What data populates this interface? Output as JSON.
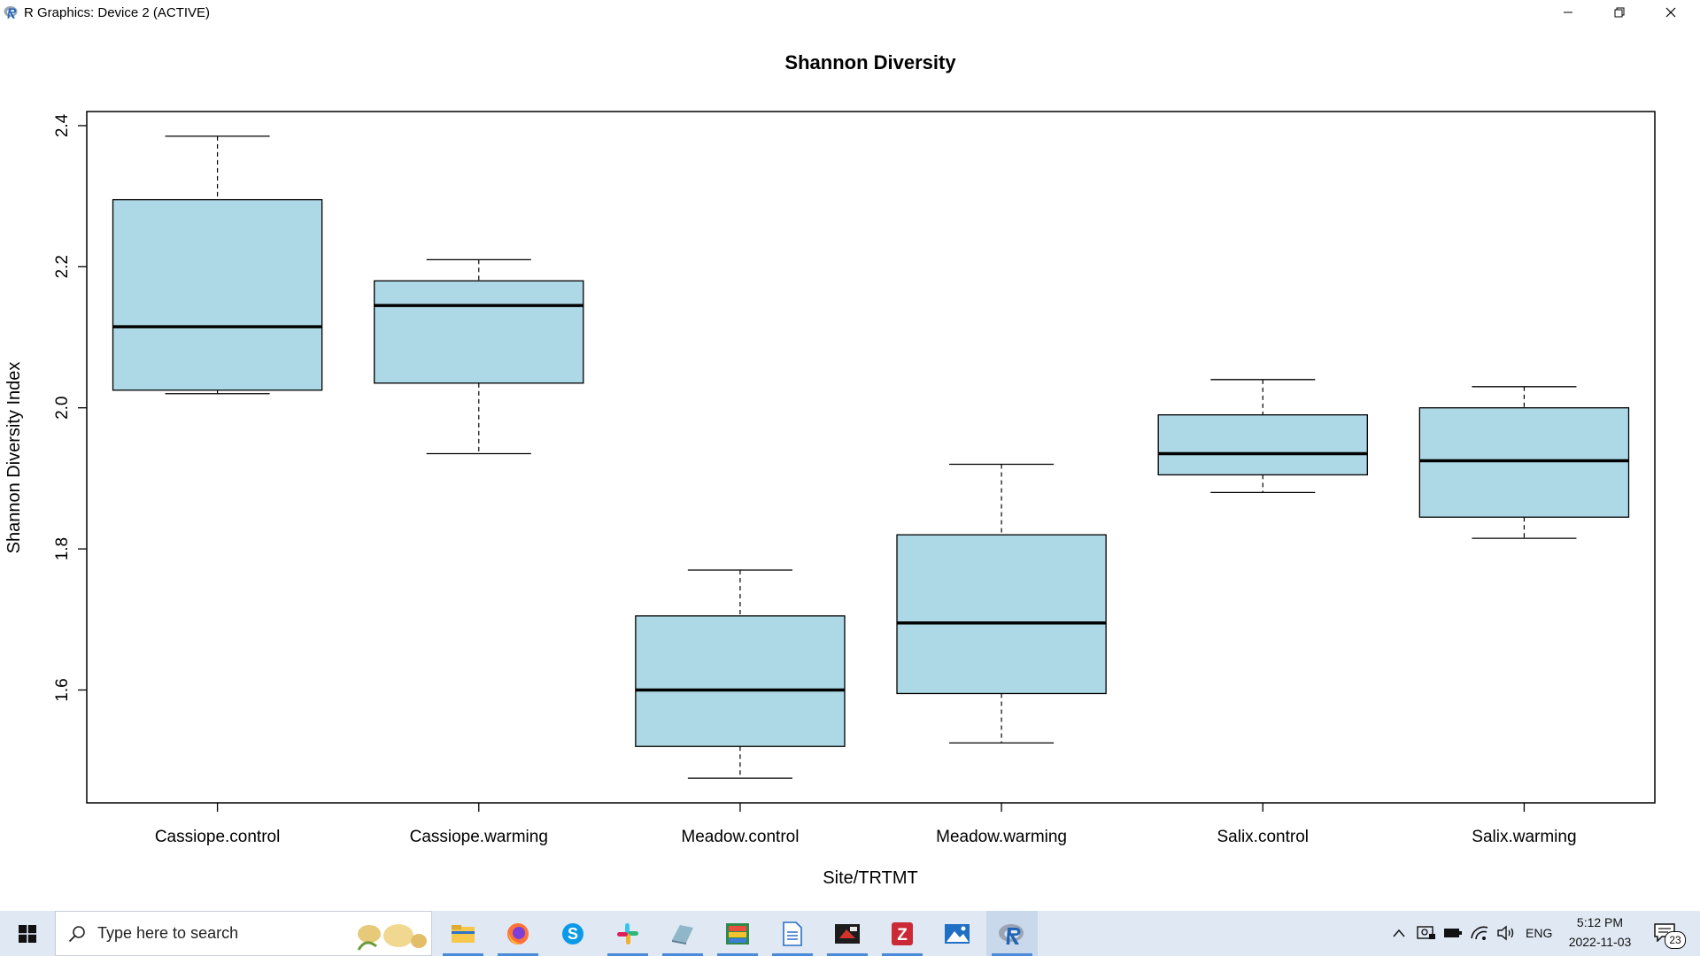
{
  "window": {
    "title": "R Graphics: Device 2 (ACTIVE)"
  },
  "chart_data": {
    "type": "boxplot",
    "title": "Shannon Diversity",
    "xlabel": "Site/TRTMT",
    "ylabel": "Shannon Diversity Index",
    "ylim": [
      1.44,
      2.42
    ],
    "yticks": [
      "1.6",
      "1.8",
      "2.0",
      "2.2",
      "2.4"
    ],
    "categories": [
      "Cassiope.control",
      "Cassiope.warming",
      "Meadow.control",
      "Meadow.warming",
      "Salix.control",
      "Salix.warming"
    ],
    "boxes": [
      {
        "min": 2.02,
        "q1": 2.025,
        "median": 2.115,
        "q3": 2.295,
        "max": 2.385
      },
      {
        "min": 1.935,
        "q1": 2.035,
        "median": 2.145,
        "q3": 2.18,
        "max": 2.21
      },
      {
        "min": 1.475,
        "q1": 1.52,
        "median": 1.6,
        "q3": 1.705,
        "max": 1.77
      },
      {
        "min": 1.525,
        "q1": 1.595,
        "median": 1.695,
        "q3": 1.82,
        "max": 1.92
      },
      {
        "min": 1.88,
        "q1": 1.905,
        "median": 1.935,
        "q3": 1.99,
        "max": 2.04
      },
      {
        "min": 1.815,
        "q1": 1.845,
        "median": 1.925,
        "q3": 2.0,
        "max": 2.03
      }
    ],
    "box_color": "#add8e6",
    "grid": false,
    "legend": "none"
  },
  "taskbar": {
    "search_placeholder": "Type here to search",
    "apps": [
      "file-explorer-icon",
      "firefox-icon",
      "skype-icon",
      "slack-icon",
      "app-icon",
      "spreadsheet-icon",
      "document-icon",
      "media-icon",
      "zotero-icon",
      "photos-icon",
      "r-icon"
    ],
    "tray": {
      "language": "ENG",
      "time": "5:12 PM",
      "date": "2022-11-03",
      "notifications": "23"
    }
  }
}
